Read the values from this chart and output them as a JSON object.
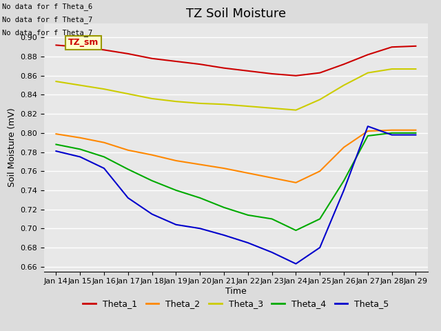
{
  "title": "TZ Soil Moisture",
  "xlabel": "Time",
  "ylabel": "Soil Moisture (mV)",
  "ylim": [
    0.655,
    0.915
  ],
  "xlim": [
    -0.5,
    15.5
  ],
  "x_tick_labels": [
    "Jan 14",
    "Jan 15",
    "Jan 16",
    "Jan 17",
    "Jan 18",
    "Jan 19",
    "Jan 20",
    "Jan 21",
    "Jan 22",
    "Jan 23",
    "Jan 24",
    "Jan 25",
    "Jan 26",
    "Jan 27",
    "Jan 28",
    "Jan 29"
  ],
  "no_data_text": [
    "No data for f Theta_6",
    "No data for f Theta_7",
    "No data for f Theta_7"
  ],
  "tooltip_label": "TZ_sm",
  "series": {
    "Theta_1": {
      "color": "#cc0000",
      "x": [
        0,
        1,
        2,
        3,
        4,
        5,
        6,
        7,
        8,
        9,
        10,
        11,
        12,
        13,
        14,
        15
      ],
      "y": [
        0.892,
        0.89,
        0.887,
        0.883,
        0.878,
        0.875,
        0.872,
        0.868,
        0.865,
        0.862,
        0.86,
        0.863,
        0.872,
        0.882,
        0.89,
        0.891
      ]
    },
    "Theta_2": {
      "color": "#ff8800",
      "x": [
        0,
        1,
        2,
        3,
        4,
        5,
        6,
        7,
        8,
        9,
        10,
        11,
        12,
        13,
        14,
        15
      ],
      "y": [
        0.799,
        0.795,
        0.79,
        0.782,
        0.777,
        0.771,
        0.767,
        0.763,
        0.758,
        0.753,
        0.748,
        0.76,
        0.785,
        0.802,
        0.803,
        0.803
      ]
    },
    "Theta_3": {
      "color": "#cccc00",
      "x": [
        0,
        1,
        2,
        3,
        4,
        5,
        6,
        7,
        8,
        9,
        10,
        11,
        12,
        13,
        14,
        15
      ],
      "y": [
        0.854,
        0.85,
        0.846,
        0.841,
        0.836,
        0.833,
        0.831,
        0.83,
        0.828,
        0.826,
        0.824,
        0.835,
        0.85,
        0.863,
        0.867,
        0.867
      ]
    },
    "Theta_4": {
      "color": "#00aa00",
      "x": [
        0,
        1,
        2,
        3,
        4,
        5,
        6,
        7,
        8,
        9,
        10,
        11,
        12,
        13,
        14,
        15
      ],
      "y": [
        0.788,
        0.783,
        0.775,
        0.762,
        0.75,
        0.74,
        0.732,
        0.722,
        0.714,
        0.71,
        0.698,
        0.71,
        0.75,
        0.797,
        0.8,
        0.8
      ]
    },
    "Theta_5": {
      "color": "#0000cc",
      "x": [
        0,
        1,
        2,
        3,
        4,
        5,
        6,
        7,
        8,
        9,
        10,
        11,
        12,
        13,
        14,
        15
      ],
      "y": [
        0.781,
        0.775,
        0.763,
        0.732,
        0.715,
        0.704,
        0.7,
        0.693,
        0.685,
        0.675,
        0.663,
        0.68,
        0.74,
        0.807,
        0.798,
        0.798
      ]
    }
  },
  "bg_color": "#e8e8e8",
  "fig_bg_color": "#dcdcdc",
  "grid_color": "#ffffff",
  "title_fontsize": 13,
  "axis_label_fontsize": 9,
  "tick_fontsize": 8,
  "legend_fontsize": 9,
  "yticks": [
    0.66,
    0.68,
    0.7,
    0.72,
    0.74,
    0.76,
    0.78,
    0.8,
    0.82,
    0.84,
    0.86,
    0.88,
    0.9
  ]
}
